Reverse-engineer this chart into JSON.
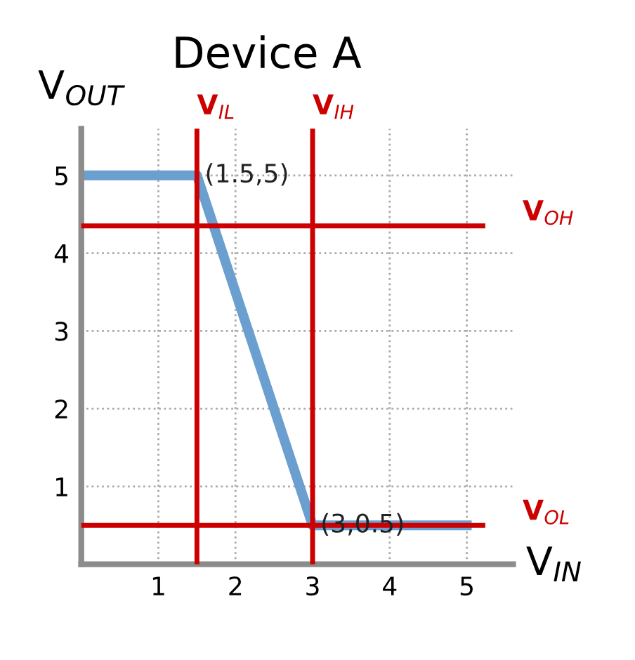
{
  "chart_data": {
    "type": "line",
    "title": "Device A",
    "xlabel": "V$_{IN}$",
    "ylabel": "V$_{OUT}$",
    "x": [
      0,
      1.5,
      3,
      5
    ],
    "series": [
      {
        "color": "#6a9fd0",
        "values": [
          5,
          5,
          0.5,
          0.5
        ]
      }
    ],
    "xlim": [
      0,
      5.6
    ],
    "ylim": [
      0,
      5.6
    ],
    "xticks": [
      1,
      2,
      3,
      4,
      5
    ],
    "yticks": [
      1,
      2,
      3,
      4,
      5
    ],
    "grid": true,
    "line_style": "solid",
    "marker": "none",
    "ref_lines": [
      {
        "axis": "x",
        "value": 1.5,
        "label": "V$_{IL}$",
        "color": "#cc0000"
      },
      {
        "axis": "x",
        "value": 3,
        "label": "V$_{IH}$",
        "color": "#cc0000"
      },
      {
        "axis": "y",
        "value": 4.35,
        "label": "V$_{OH}$",
        "color": "#cc0000"
      },
      {
        "axis": "y",
        "value": 0.5,
        "label": "V$_{OL}$",
        "color": "#cc0000"
      }
    ],
    "annotations": [
      {
        "text": "(1.5,5)",
        "x": 1.5,
        "y": 5
      },
      {
        "text": "(3,0.5)",
        "x": 3,
        "y": 0.5
      }
    ]
  }
}
